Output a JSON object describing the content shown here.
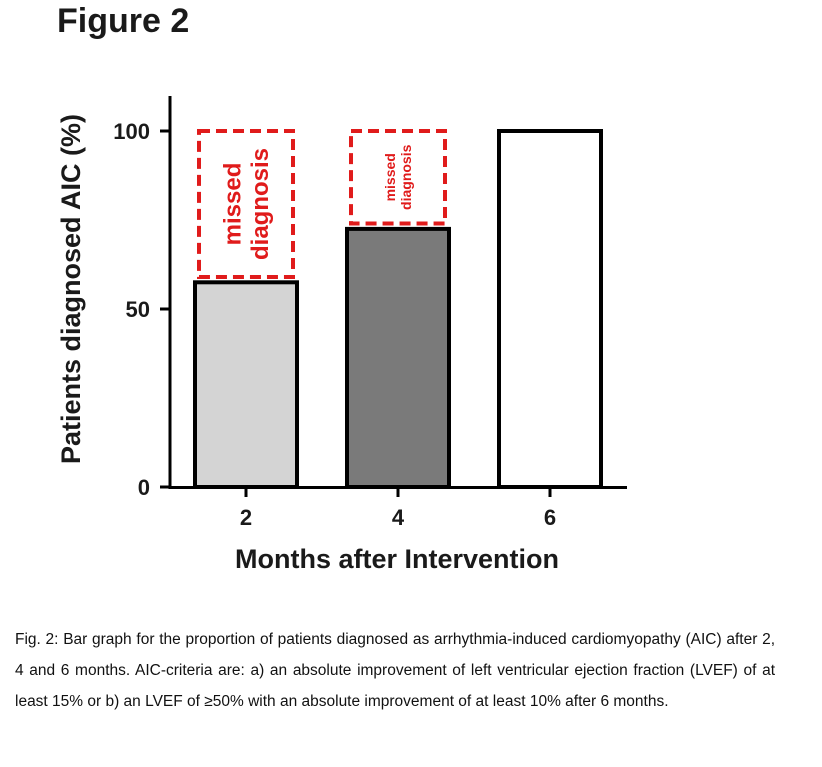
{
  "figure_title": "Figure 2",
  "caption": "Fig. 2: Bar graph for the proportion of patients diagnosed as arrhythmia-induced cardiomyopathy (AIC) after 2, 4 and 6 months. AIC-criteria are: a) an absolute improvement of left ventricular ejection fraction (LVEF) of at least 15% or b) an LVEF of ≥50% with an absolute improvement of at least 10% after 6 months.",
  "chart_data": {
    "type": "bar",
    "title": "",
    "xlabel": "Months after Intervention",
    "ylabel": "Patients diagnosed AIC (%)",
    "categories": [
      "2",
      "4",
      "6"
    ],
    "values": [
      57.5,
      72.5,
      100
    ],
    "ylim": [
      0,
      110
    ],
    "yticks": [
      0,
      50,
      100
    ],
    "bar_colors": [
      "#d4d4d4",
      "#7a7a7a",
      "#ffffff"
    ],
    "grid": false,
    "annotations": [
      {
        "category": "2",
        "from": 59,
        "to": 100,
        "text_lines": [
          "missed",
          "diagnosis"
        ],
        "style": "dashed-box",
        "color": "#e01b1b"
      },
      {
        "category": "4",
        "from": 74,
        "to": 100,
        "text_lines": [
          "missed",
          "diagnosis"
        ],
        "style": "dashed-box",
        "color": "#e01b1b"
      }
    ]
  }
}
